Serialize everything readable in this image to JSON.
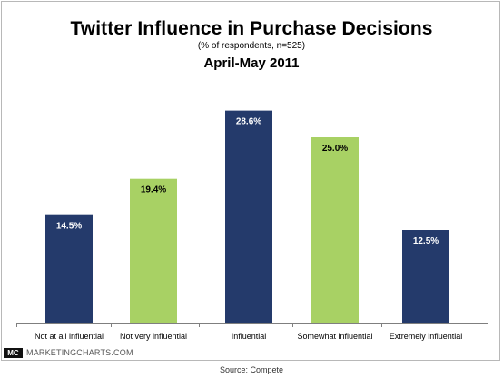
{
  "chart_data": {
    "type": "bar",
    "title": "Twitter Influence in Purchase Decisions",
    "subtitle": "(% of respondents, n=525)",
    "period": "April-May 2011",
    "categories": [
      "Not at all influential",
      "Not very influential",
      "Influential",
      "Somewhat influential",
      "Extremely influential"
    ],
    "values": [
      14.5,
      19.4,
      28.6,
      25.0,
      12.5
    ],
    "value_labels": [
      "14.5%",
      "19.4%",
      "28.6%",
      "25.0%",
      "12.5%"
    ],
    "bar_colors": [
      "#243a6b",
      "#a8d164",
      "#243a6b",
      "#a8d164",
      "#243a6b"
    ],
    "label_colors": [
      "#ffffff",
      "#000000",
      "#ffffff",
      "#000000",
      "#ffffff"
    ],
    "ylim": [
      0,
      30
    ],
    "grid": false,
    "legend": "none"
  },
  "footer": {
    "badge": "MC",
    "brand": "MARKETINGCHARTS.COM",
    "source": "Source: Compete"
  }
}
